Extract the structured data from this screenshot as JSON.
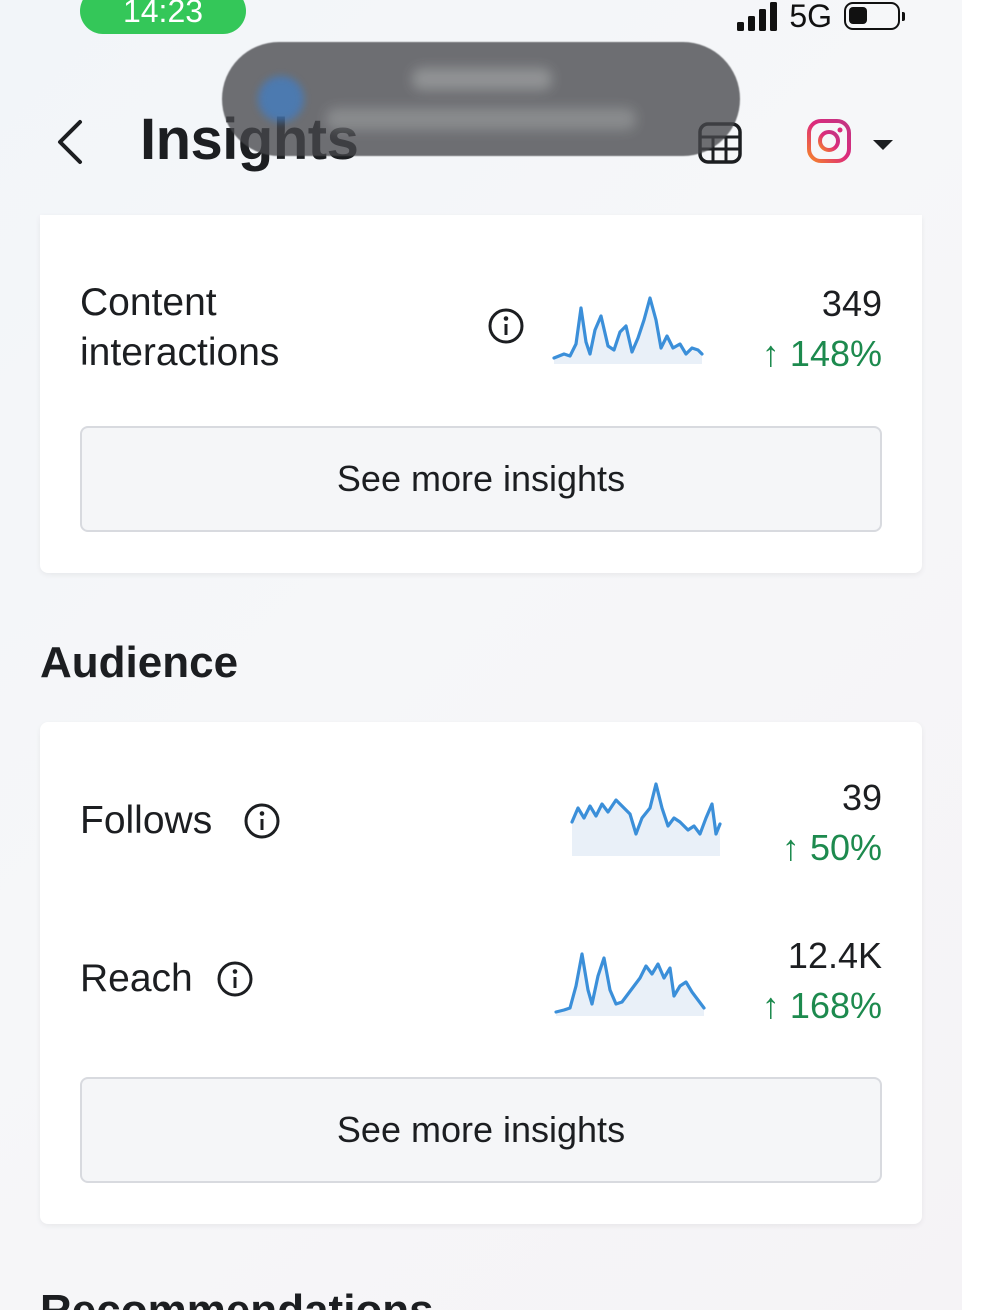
{
  "status": {
    "time": "14:23",
    "network": "5G"
  },
  "header": {
    "title": "Insights"
  },
  "overview": {
    "metric": {
      "label_line1": "Content",
      "label_line2": "interactions",
      "value": "349",
      "change": "148%"
    },
    "see_more": "See more insights"
  },
  "audience": {
    "heading": "Audience",
    "follows": {
      "label": "Follows",
      "value": "39",
      "change": "50%"
    },
    "reach": {
      "label": "Reach",
      "value": "12.4K",
      "change": "168%"
    },
    "see_more": "See more insights"
  },
  "next_section": {
    "heading": "Recommendations"
  },
  "colors": {
    "positive": "#1d8a4e",
    "sparkline": "#3b8fd9",
    "status_pill": "#34c759"
  },
  "icons": [
    "back-chevron-icon",
    "info-icon",
    "arrow-up-icon",
    "calendar-grid-icon",
    "instagram-icon",
    "caret-down-icon"
  ]
}
